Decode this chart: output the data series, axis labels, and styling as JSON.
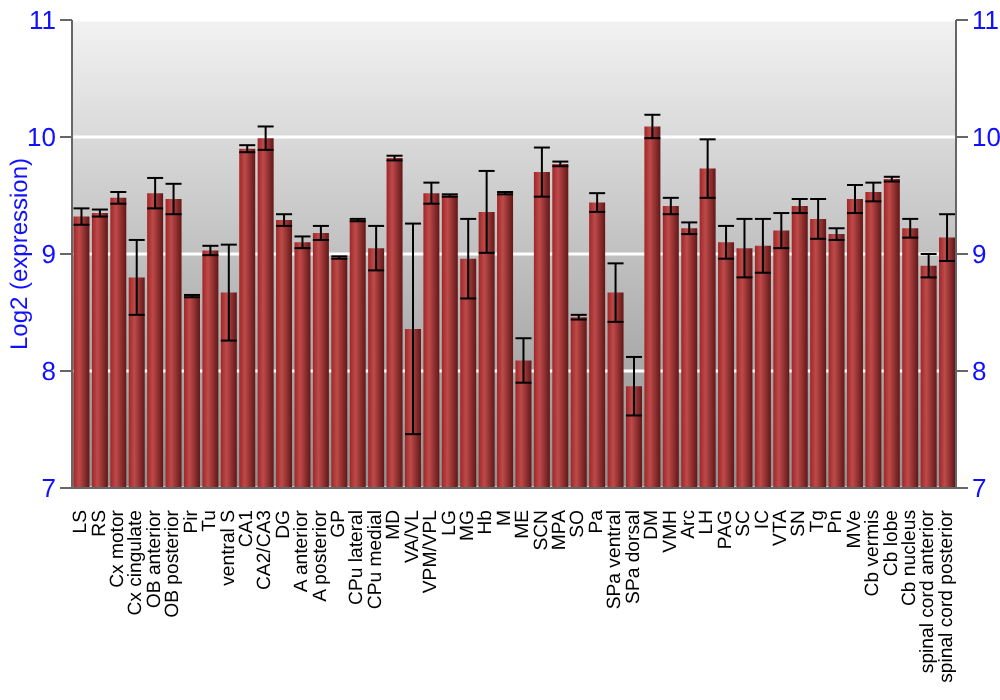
{
  "chart_data": {
    "type": "bar",
    "ylabel": "Log2 (expression)",
    "categories": [
      "LS",
      "RS",
      "Cx motor",
      "Cx cingulate",
      "OB anterior",
      "OB posterior",
      "Pir",
      "Tu",
      "ventral S",
      "CA1",
      "CA2/CA3",
      "DG",
      "A anterior",
      "A posterior",
      "GP",
      "CPu lateral",
      "CPu medial",
      "MD",
      "VA/VL",
      "VPM/VPL",
      "LG",
      "MG",
      "Hb",
      "M",
      "ME",
      "SCN",
      "MPA",
      "SO",
      "Pa",
      "SPa ventral",
      "SPa dorsal",
      "DM",
      "VMH",
      "Arc",
      "LH",
      "PAG",
      "SC",
      "IC",
      "VTA",
      "SN",
      "Tg",
      "Pn",
      "MVe",
      "Cb vermis",
      "Cb lobe",
      "Cb nucleus",
      "spinal cord anterior",
      "spinal cord posterior"
    ],
    "values": [
      9.32,
      9.35,
      9.48,
      8.8,
      9.52,
      9.47,
      8.64,
      9.03,
      8.67,
      9.9,
      9.99,
      9.29,
      9.1,
      9.18,
      8.97,
      9.29,
      9.05,
      9.82,
      8.36,
      9.52,
      9.5,
      8.96,
      9.36,
      9.52,
      8.09,
      9.7,
      9.77,
      8.46,
      9.44,
      8.67,
      7.87,
      10.09,
      9.41,
      9.22,
      9.73,
      9.1,
      9.05,
      9.07,
      9.2,
      9.41,
      9.3,
      9.17,
      9.47,
      9.53,
      9.64,
      9.22,
      8.9,
      9.14
    ],
    "errors": [
      0.07,
      0.03,
      0.05,
      0.32,
      0.13,
      0.13,
      0.01,
      0.04,
      0.41,
      0.03,
      0.1,
      0.05,
      0.05,
      0.06,
      0.01,
      0.01,
      0.19,
      0.02,
      0.9,
      0.09,
      0.01,
      0.34,
      0.35,
      0.01,
      0.19,
      0.21,
      0.02,
      0.02,
      0.08,
      0.25,
      0.25,
      0.1,
      0.07,
      0.05,
      0.25,
      0.14,
      0.25,
      0.23,
      0.15,
      0.06,
      0.17,
      0.05,
      0.12,
      0.08,
      0.02,
      0.08,
      0.1,
      0.2
    ],
    "color": "#b22a2a",
    "ylim": [
      7,
      11
    ],
    "yticks": [
      7,
      8,
      9,
      10,
      11
    ],
    "y2lim": [
      7,
      11
    ],
    "y2ticks": [
      7,
      8,
      9,
      10,
      11
    ],
    "grid": "y"
  }
}
